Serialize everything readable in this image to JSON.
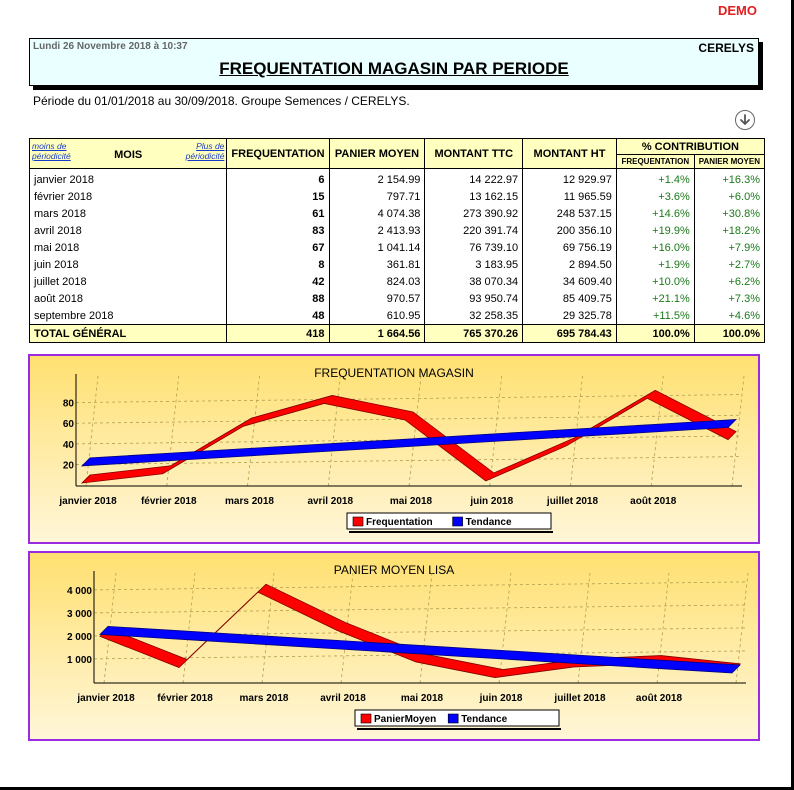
{
  "demo_label": "DEMO",
  "header": {
    "date": "Lundi 26 Novembre 2018 à 10:37",
    "company": "CERELYS",
    "title": "FREQUENTATION MAGASIN PAR PERIODE"
  },
  "period_line": "Période du 01/01/2018 au 30/09/2018. Groupe  Semences / CERELYS.",
  "download_icon": "arrow-down-circle-icon",
  "table": {
    "link_less": "moins de périodicité",
    "link_more": "Plus de périodicité",
    "headers": {
      "mois": "MOIS",
      "frequentation": "FREQUENTATION",
      "panier": "PANIER MOYEN",
      "ttc": "MONTANT TTC",
      "ht": "MONTANT HT",
      "contribution": "% CONTRIBUTION",
      "contrib_freq": "FREQUENTATION",
      "contrib_panier": "PANIER MOYEN"
    },
    "rows": [
      {
        "mois": "janvier 2018",
        "freq": "6",
        "panier": "2 154.99",
        "ttc": "14 222.97",
        "ht": "12 929.97",
        "pf": "+1.4%",
        "pp": "+16.3%"
      },
      {
        "mois": "février 2018",
        "freq": "15",
        "panier": "797.71",
        "ttc": "13 162.15",
        "ht": "11 965.59",
        "pf": "+3.6%",
        "pp": "+6.0%"
      },
      {
        "mois": "mars 2018",
        "freq": "61",
        "panier": "4 074.38",
        "ttc": "273 390.92",
        "ht": "248 537.15",
        "pf": "+14.6%",
        "pp": "+30.8%"
      },
      {
        "mois": "avril 2018",
        "freq": "83",
        "panier": "2 413.93",
        "ttc": "220 391.74",
        "ht": "200 356.10",
        "pf": "+19.9%",
        "pp": "+18.2%"
      },
      {
        "mois": "mai 2018",
        "freq": "67",
        "panier": "1 041.14",
        "ttc": "76 739.10",
        "ht": "69 756.19",
        "pf": "+16.0%",
        "pp": "+7.9%"
      },
      {
        "mois": "juin 2018",
        "freq": "8",
        "panier": "361.81",
        "ttc": "3 183.95",
        "ht": "2 894.50",
        "pf": "+1.9%",
        "pp": "+2.7%"
      },
      {
        "mois": "juillet 2018",
        "freq": "42",
        "panier": "824.03",
        "ttc": "38 070.34",
        "ht": "34 609.40",
        "pf": "+10.0%",
        "pp": "+6.2%"
      },
      {
        "mois": "août 2018",
        "freq": "88",
        "panier": "970.57",
        "ttc": "93 950.74",
        "ht": "85 409.75",
        "pf": "+21.1%",
        "pp": "+7.3%"
      },
      {
        "mois": "septembre 2018",
        "freq": "48",
        "panier": "610.95",
        "ttc": "32 258.35",
        "ht": "29 325.78",
        "pf": "+11.5%",
        "pp": "+4.6%"
      }
    ],
    "total": {
      "label": "TOTAL GÉNÉRAL",
      "freq": "418",
      "panier": "1 664.56",
      "ttc": "765 370.26",
      "ht": "695 784.43",
      "pf": "100.0%",
      "pp": "100.0%"
    }
  },
  "chart_data": [
    {
      "type": "line",
      "title": "FREQUENTATION MAGASIN",
      "x": [
        "janvier 2018",
        "février 2018",
        "mars 2018",
        "avril 2018",
        "mai 2018",
        "juin 2018",
        "juillet 2018",
        "août 2018",
        "septembre 2018"
      ],
      "x_tick_labels": [
        "janvier 2018",
        "février 2018",
        "mars 2018",
        "avril 2018",
        "mai 2018",
        "juin 2018",
        "juillet 2018",
        "août 2018"
      ],
      "yticks": [
        20,
        40,
        60,
        80
      ],
      "ylim": [
        7,
        96
      ],
      "grid": true,
      "legend": "bottom",
      "series": [
        {
          "name": "Frequentation",
          "color": "#ff0000",
          "values": [
            6,
            15,
            61,
            83,
            67,
            8,
            42,
            88,
            48
          ]
        },
        {
          "name": "Tendance",
          "color": "#0000ff",
          "values": [
            22.6,
            27.2,
            31.9,
            36.5,
            41.1,
            45.8,
            50.4,
            55.0,
            59.7
          ]
        }
      ]
    },
    {
      "type": "line",
      "title": "PANIER MOYEN LISA",
      "x": [
        "janvier 2018",
        "février 2018",
        "mars 2018",
        "avril 2018",
        "mai 2018",
        "juin 2018",
        "juillet 2018",
        "août 2018",
        "septembre 2018"
      ],
      "x_tick_labels": [
        "janvier 2018",
        "février 2018",
        "mars 2018",
        "avril 2018",
        "mai 2018",
        "juin 2018",
        "juillet 2018",
        "août 2018"
      ],
      "yticks": [
        1000,
        2000,
        3000,
        4000
      ],
      "ylim": [
        300,
        4300
      ],
      "grid": true,
      "legend": "bottom",
      "series": [
        {
          "name": "PanierMoyen",
          "color": "#ff0000",
          "values": [
            2154.99,
            797.71,
            4074.38,
            2413.93,
            1041.14,
            361.81,
            824.03,
            970.57,
            610.95
          ]
        },
        {
          "name": "Tendance",
          "color": "#0000ff",
          "values": [
            2240,
            2030,
            1820,
            1610,
            1400,
            1190,
            980,
            770,
            560
          ]
        }
      ]
    }
  ]
}
